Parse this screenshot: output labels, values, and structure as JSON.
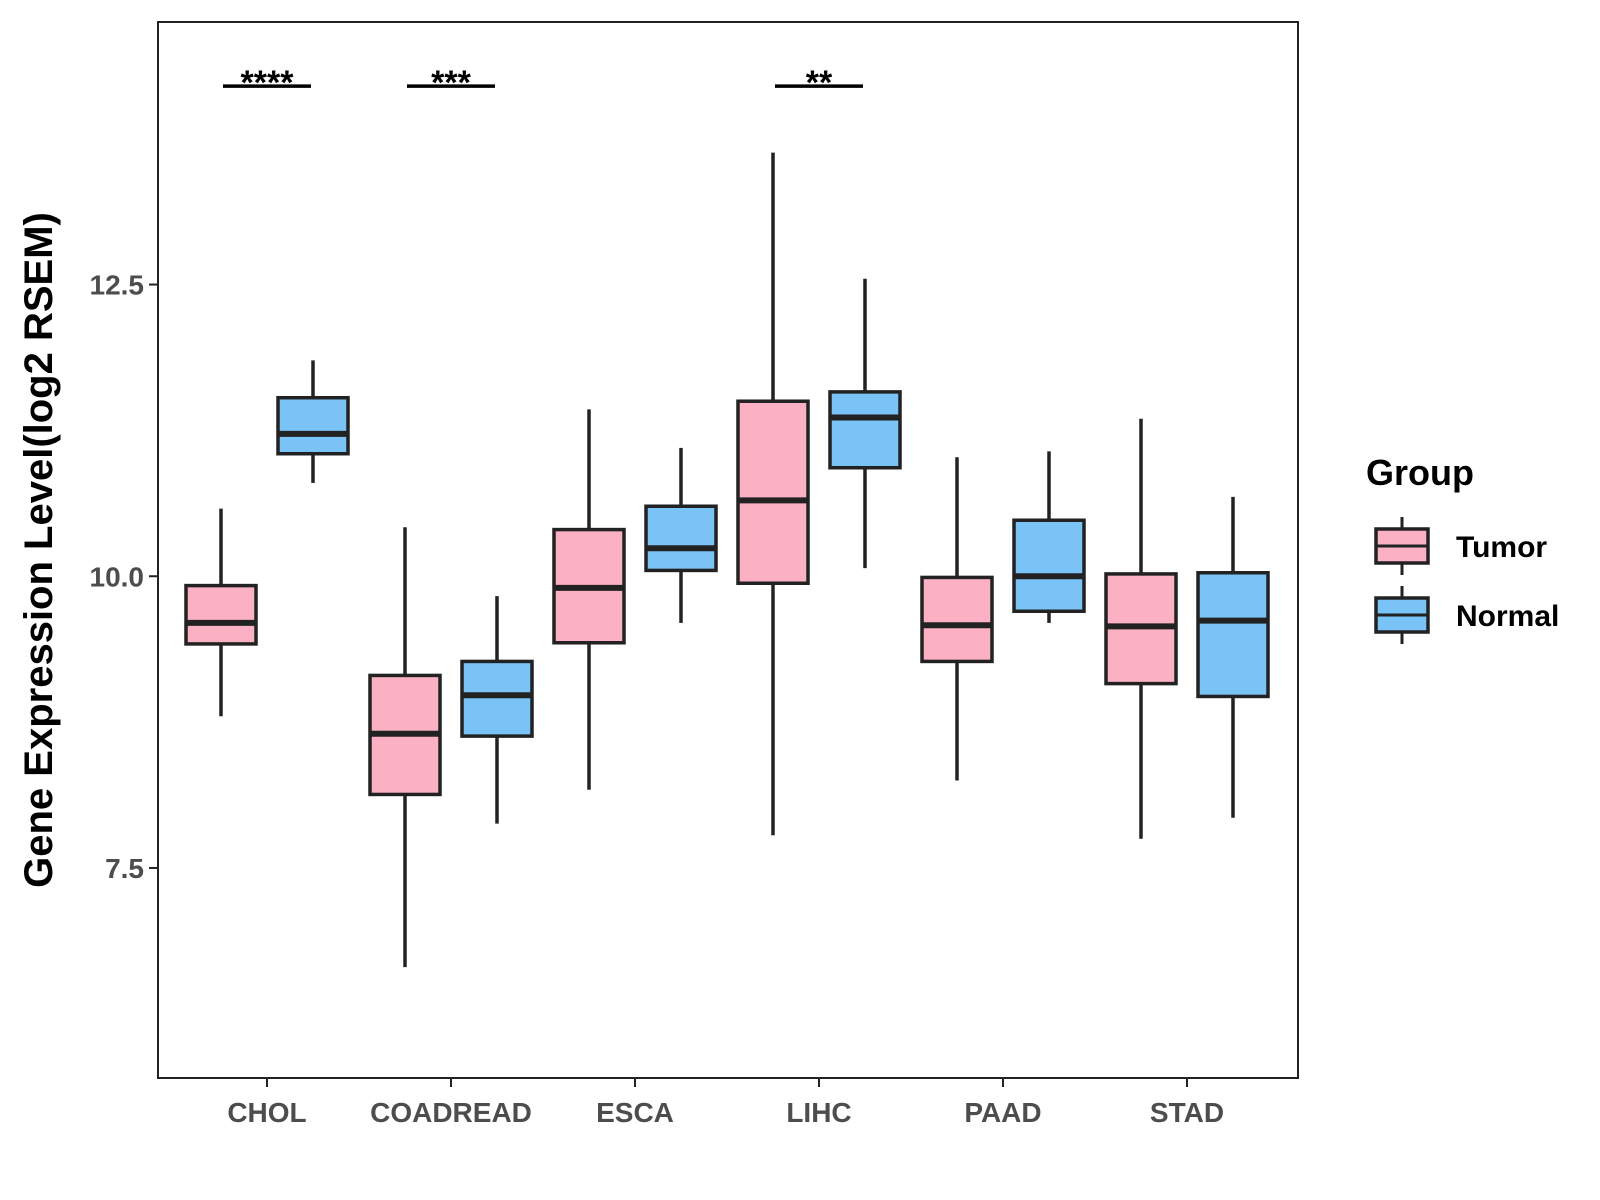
{
  "chart_data": {
    "type": "boxplot",
    "title": "",
    "xlabel": "",
    "ylabel": "Gene Expression Level(log2 RSEM)",
    "ylim": [
      5.7,
      14.75
    ],
    "yticks": [
      7.5,
      10.0,
      12.5
    ],
    "ytick_labels": [
      "7.5",
      "10.0",
      "12.5"
    ],
    "categories": [
      "CHOL",
      "COADREAD",
      "ESCA",
      "LIHC",
      "PAAD",
      "STAD"
    ],
    "grid": false,
    "legend": {
      "title": "Group",
      "position": "right",
      "entries": [
        {
          "name": "Tumor",
          "color": "#FBB1C3"
        },
        {
          "name": "Normal",
          "color": "#7AC3F7"
        }
      ]
    },
    "series": [
      {
        "name": "Tumor",
        "color": "#FBB1C3",
        "boxes": [
          {
            "category": "CHOL",
            "min": 8.8,
            "q1": 9.42,
            "median": 9.6,
            "q3": 9.92,
            "max": 10.58
          },
          {
            "category": "COADREAD",
            "min": 6.65,
            "q1": 8.13,
            "median": 8.65,
            "q3": 9.15,
            "max": 10.42
          },
          {
            "category": "ESCA",
            "min": 8.17,
            "q1": 9.43,
            "median": 9.9,
            "q3": 10.4,
            "max": 11.43
          },
          {
            "category": "LIHC",
            "min": 7.78,
            "q1": 9.94,
            "median": 10.65,
            "q3": 11.5,
            "max": 13.63
          },
          {
            "category": "PAAD",
            "min": 8.25,
            "q1": 9.27,
            "median": 9.58,
            "q3": 9.99,
            "max": 11.02
          },
          {
            "category": "STAD",
            "min": 7.75,
            "q1": 9.08,
            "median": 9.57,
            "q3": 10.02,
            "max": 11.35
          }
        ]
      },
      {
        "name": "Normal",
        "color": "#7AC3F7",
        "boxes": [
          {
            "category": "CHOL",
            "min": 10.8,
            "q1": 11.05,
            "median": 11.22,
            "q3": 11.53,
            "max": 11.85
          },
          {
            "category": "COADREAD",
            "min": 7.88,
            "q1": 8.63,
            "median": 8.98,
            "q3": 9.27,
            "max": 9.83
          },
          {
            "category": "ESCA",
            "min": 9.6,
            "q1": 10.05,
            "median": 10.24,
            "q3": 10.6,
            "max": 11.1
          },
          {
            "category": "LIHC",
            "min": 10.07,
            "q1": 10.93,
            "median": 11.36,
            "q3": 11.58,
            "max": 12.55
          },
          {
            "category": "PAAD",
            "min": 9.6,
            "q1": 9.7,
            "median": 10.0,
            "q3": 10.48,
            "max": 11.07
          },
          {
            "category": "STAD",
            "min": 7.93,
            "q1": 8.97,
            "median": 9.62,
            "q3": 10.03,
            "max": 10.68
          }
        ]
      }
    ],
    "annotations": [
      {
        "category": "CHOL",
        "text": "****"
      },
      {
        "category": "COADREAD",
        "text": "***"
      },
      {
        "category": "LIHC",
        "text": "**"
      }
    ],
    "annotation_level": 14.2
  }
}
